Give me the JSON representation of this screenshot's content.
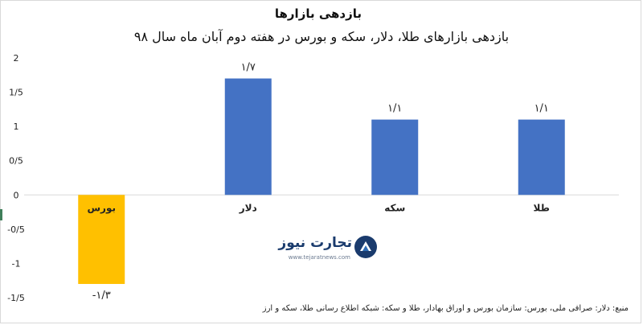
{
  "title": "بازدهی بازارها",
  "subtitle": "بازدهی بازارهای طلا، دلار، سکه و بورس در هفته دوم آبان ماه سال ۹۸",
  "source": "منبع: دلار: صرافی ملی، بورس: سازمان بورس و اوراق بهادار، طلا و سکه: شبکه اطلاع رسانی طلا، سکه و ارز",
  "logo": {
    "text": "تجارت نیوز",
    "url": "www.tejaratnews.com"
  },
  "colors": {
    "positive": "#4472C4",
    "negative": "#FFC000",
    "grid": "#d9d9d9"
  },
  "chart_data": {
    "type": "bar",
    "categories": [
      "بورس",
      "دلار",
      "سکه",
      "طلا"
    ],
    "values": [
      -1.3,
      1.7,
      1.1,
      1.1
    ],
    "data_labels": [
      "-۱/۳",
      "۱/۷",
      "۱/۱",
      "۱/۱"
    ],
    "category_labels": [
      "بورس",
      "دلار",
      "سکه",
      "طلا"
    ],
    "bar_colors": [
      "#FFC000",
      "#4472C4",
      "#4472C4",
      "#4472C4"
    ],
    "ylim": [
      -1.5,
      2
    ],
    "y_ticks": [
      2,
      1.5,
      1,
      0.5,
      0,
      -0.5,
      -1,
      -1.5
    ],
    "y_tick_labels": [
      "2",
      "1/5",
      "1",
      "0/5",
      "0",
      "-0/5",
      "-1",
      "-1/5"
    ],
    "xlabel": "",
    "ylabel": "",
    "grid": false,
    "legend": "none"
  }
}
